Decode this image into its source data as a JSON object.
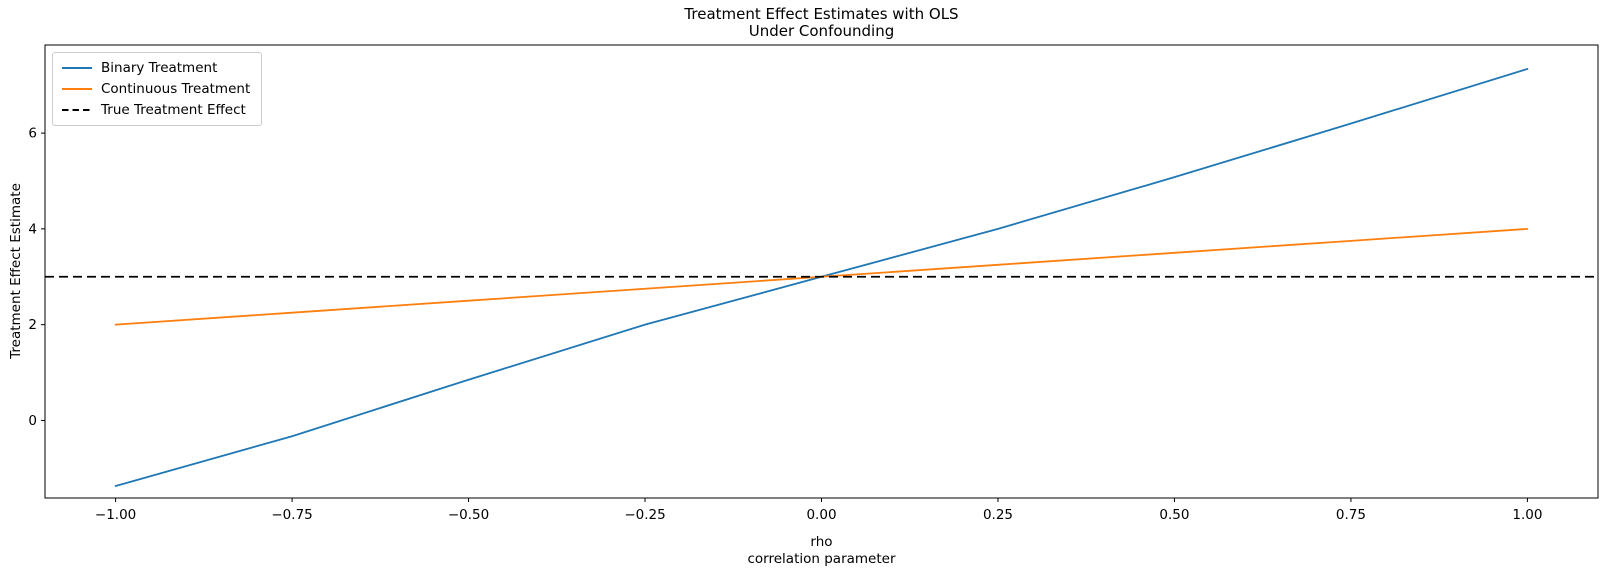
{
  "chart_data": {
    "type": "line",
    "title": "Treatment Effect Estimates with OLS\nUnder Confounding",
    "title_lines": [
      "Treatment Effect Estimates with OLS",
      "Under Confounding"
    ],
    "xlabel": "rho\ncorrelation parameter",
    "xlabel_lines": [
      "rho",
      "correlation parameter"
    ],
    "ylabel": "Treatment Effect Estimate",
    "x": [
      -1.0,
      -0.75,
      -0.5,
      -0.25,
      0.0,
      0.25,
      0.5,
      0.75,
      1.0
    ],
    "series": [
      {
        "name": "Binary Treatment",
        "color": "#1f77b4",
        "line_style": "solid",
        "values": [
          -1.37,
          -0.33,
          0.85,
          2.0,
          3.0,
          4.0,
          5.08,
          6.2,
          7.34
        ]
      },
      {
        "name": "Continuous Treatment",
        "color": "#ff7f0e",
        "line_style": "solid",
        "values": [
          2.0,
          2.25,
          2.5,
          2.75,
          3.0,
          3.25,
          3.5,
          3.75,
          4.0
        ]
      },
      {
        "name": "True Treatment Effect",
        "color": "#000000",
        "line_style": "dashed",
        "hline_y": 3.0
      }
    ],
    "xlim": [
      -1.1,
      1.1
    ],
    "ylim": [
      -1.62,
      7.84
    ],
    "xticks": [
      -1.0,
      -0.75,
      -0.5,
      -0.25,
      0.0,
      0.25,
      0.5,
      0.75,
      1.0
    ],
    "xtick_labels": [
      "−1.00",
      "−0.75",
      "−0.50",
      "−0.25",
      "0.00",
      "0.25",
      "0.50",
      "0.75",
      "1.00"
    ],
    "yticks": [
      0,
      2,
      4,
      6
    ],
    "ytick_labels": [
      "0",
      "2",
      "4",
      "6"
    ],
    "grid": false,
    "legend_position": "upper left",
    "legend_entries": [
      "Binary Treatment",
      "Continuous Treatment",
      "True Treatment Effect"
    ],
    "background_color": "#ffffff",
    "axis_color": "#000000"
  }
}
